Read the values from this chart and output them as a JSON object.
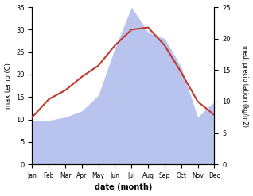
{
  "months": [
    "Jan",
    "Feb",
    "Mar",
    "Apr",
    "May",
    "Jun",
    "Jul",
    "Aug",
    "Sep",
    "Oct",
    "Nov",
    "Dec"
  ],
  "temp": [
    10.5,
    14.5,
    16.5,
    19.5,
    22.0,
    26.5,
    30.0,
    30.5,
    26.5,
    20.5,
    14.0,
    11.0
  ],
  "precip": [
    7.0,
    7.0,
    7.5,
    8.5,
    11.0,
    18.5,
    25.0,
    21.0,
    20.0,
    15.5,
    7.5,
    10.0
  ],
  "temp_color": "#c0392b",
  "precip_color": "#b8c4ed",
  "ylabel_left": "max temp (C)",
  "ylabel_right": "med. precipitation (kg/m2)",
  "xlabel": "date (month)",
  "ylim_left": [
    0,
    35
  ],
  "ylim_right": [
    0,
    25
  ],
  "yticks_left": [
    0,
    5,
    10,
    15,
    20,
    25,
    30,
    35
  ],
  "yticks_right": [
    0,
    5,
    10,
    15,
    20,
    25
  ],
  "background_color": "#ffffff"
}
